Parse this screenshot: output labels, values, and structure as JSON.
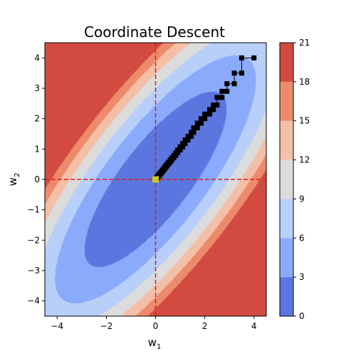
{
  "chart_data": {
    "type": "contour",
    "title": "Coordinate Descent",
    "xlabel_base": "w",
    "xlabel_sub": "1",
    "ylabel_base": "w",
    "ylabel_sub": "2",
    "xlim": [
      -4.5,
      4.5
    ],
    "ylim": [
      -4.5,
      4.5
    ],
    "xticks": [
      -4,
      -2,
      0,
      2,
      4
    ],
    "yticks": [
      -4,
      -3,
      -2,
      -1,
      0,
      1,
      2,
      3,
      4
    ],
    "xtick_labels": [
      "−4",
      "−2",
      "0",
      "2",
      "4"
    ],
    "ytick_labels": [
      "−4",
      "−3",
      "−2",
      "−1",
      "0",
      "1",
      "2",
      "3",
      "4"
    ],
    "contour_function": "w1^2 - 1.6*w1*w2 + w2^2",
    "levels": [
      0,
      3,
      6,
      9,
      12,
      15,
      18,
      21
    ],
    "level_labels": [
      "0",
      "3",
      "6",
      "9",
      "12",
      "15",
      "18",
      "21"
    ],
    "level_colors": [
      "#5b76de",
      "#8aabfb",
      "#b7cff9",
      "#dcdcdc",
      "#f4bfa7",
      "#ee8a6c",
      "#d24b40"
    ],
    "reference_lines": {
      "x": 0,
      "y": 0,
      "color": "#e41a1c",
      "style": "dashed"
    },
    "path_color": "#000000",
    "path": [
      [
        4.0,
        4.0
      ],
      [
        3.5,
        4.0
      ],
      [
        3.5,
        3.5
      ],
      [
        3.2,
        3.5
      ],
      [
        3.2,
        3.15
      ],
      [
        2.9,
        3.15
      ],
      [
        2.9,
        2.9
      ],
      [
        2.7,
        2.9
      ],
      [
        2.7,
        2.7
      ],
      [
        2.5,
        2.7
      ],
      [
        2.5,
        2.45
      ],
      [
        2.35,
        2.45
      ],
      [
        2.35,
        2.3
      ],
      [
        2.2,
        2.3
      ],
      [
        2.2,
        2.15
      ],
      [
        2.0,
        2.15
      ],
      [
        2.0,
        2.0
      ],
      [
        1.85,
        2.0
      ],
      [
        1.85,
        1.85
      ],
      [
        1.7,
        1.85
      ],
      [
        1.7,
        1.7
      ],
      [
        1.55,
        1.7
      ],
      [
        1.55,
        1.55
      ],
      [
        1.45,
        1.55
      ],
      [
        1.45,
        1.42
      ],
      [
        1.32,
        1.42
      ],
      [
        1.32,
        1.3
      ],
      [
        1.2,
        1.3
      ],
      [
        1.2,
        1.18
      ],
      [
        1.1,
        1.18
      ],
      [
        1.1,
        1.07
      ],
      [
        1.0,
        1.07
      ],
      [
        1.0,
        0.97
      ],
      [
        0.9,
        0.97
      ],
      [
        0.9,
        0.88
      ],
      [
        0.82,
        0.88
      ],
      [
        0.82,
        0.79
      ],
      [
        0.74,
        0.79
      ],
      [
        0.74,
        0.71
      ],
      [
        0.66,
        0.71
      ],
      [
        0.66,
        0.64
      ],
      [
        0.6,
        0.64
      ],
      [
        0.6,
        0.57
      ],
      [
        0.53,
        0.57
      ],
      [
        0.53,
        0.51
      ],
      [
        0.47,
        0.51
      ],
      [
        0.47,
        0.45
      ],
      [
        0.42,
        0.45
      ],
      [
        0.42,
        0.4
      ],
      [
        0.37,
        0.4
      ],
      [
        0.37,
        0.35
      ],
      [
        0.33,
        0.35
      ],
      [
        0.33,
        0.31
      ],
      [
        0.29,
        0.31
      ],
      [
        0.29,
        0.27
      ],
      [
        0.25,
        0.27
      ],
      [
        0.25,
        0.23
      ],
      [
        0.21,
        0.23
      ],
      [
        0.21,
        0.19
      ],
      [
        0.17,
        0.19
      ],
      [
        0.17,
        0.15
      ],
      [
        0.13,
        0.15
      ],
      [
        0.13,
        0.11
      ],
      [
        0.09,
        0.11
      ],
      [
        0.09,
        0.07
      ],
      [
        0.05,
        0.07
      ],
      [
        0.05,
        0.04
      ],
      [
        0.02,
        0.04
      ],
      [
        0.02,
        0.02
      ]
    ],
    "final_point": [
      0.0,
      0.0
    ],
    "final_point_color": "#c8c81e"
  }
}
